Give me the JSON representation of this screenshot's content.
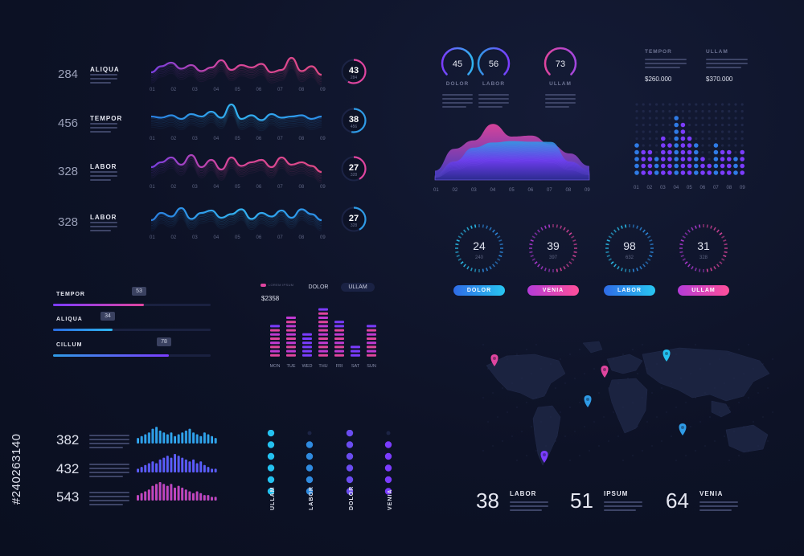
{
  "watermark": {
    "side_text": "#240263140"
  },
  "colors": {
    "background": "#0d1226",
    "pink": "#e0459f",
    "magenta": "#c03ad1",
    "purple": "#7b3cff",
    "blue": "#2f9be6",
    "cyan": "#24c1f0"
  },
  "wave_rows": [
    {
      "value": "284",
      "label": "ALIQUA",
      "badge": "43",
      "badge_sub": "284",
      "color": "pink",
      "ticks": [
        "01",
        "02",
        "03",
        "04",
        "05",
        "06",
        "07",
        "08",
        "09"
      ]
    },
    {
      "value": "456",
      "label": "TEMPOR",
      "badge": "38",
      "badge_sub": "456",
      "color": "blue",
      "ticks": [
        "01",
        "02",
        "03",
        "04",
        "05",
        "06",
        "07",
        "08",
        "09"
      ]
    },
    {
      "value": "328",
      "label": "LABOR",
      "badge": "27",
      "badge_sub": "328",
      "color": "pink",
      "ticks": [
        "01",
        "02",
        "03",
        "04",
        "05",
        "06",
        "07",
        "08",
        "09"
      ]
    },
    {
      "value": "328",
      "label": "LABOR",
      "badge": "27",
      "badge_sub": "328",
      "color": "blue",
      "ticks": [
        "01",
        "02",
        "03",
        "04",
        "05",
        "06",
        "07",
        "08",
        "09"
      ]
    }
  ],
  "progress_bars": [
    {
      "label": "TEMPOR",
      "value": "53",
      "fraction": 0.72
    },
    {
      "label": "ALIQUA",
      "value": "34",
      "fraction": 0.52
    },
    {
      "label": "CILLUM",
      "value": "78",
      "fraction": 0.88
    }
  ],
  "week_chart": {
    "legend": [
      "DOLOR",
      "ULLAM"
    ],
    "price": "$2358",
    "days": [
      "MON",
      "TUE",
      "WED",
      "THU",
      "FRI",
      "SAT",
      "SUN"
    ]
  },
  "small_rows": [
    {
      "value": "382"
    },
    {
      "value": "432"
    },
    {
      "value": "543"
    }
  ],
  "dot_columns": [
    "ULLAM",
    "LABOR",
    "DOLOR",
    "VENIA"
  ],
  "arc_gauges": [
    {
      "value": "45",
      "label": "DOLOR",
      "fraction": 0.62
    },
    {
      "value": "56",
      "label": "LABOR",
      "fraction": 0.7
    },
    {
      "value": "73",
      "label": "ULLAM",
      "fraction": 0.82
    }
  ],
  "prices": [
    {
      "label": "TEMPOR",
      "value": "$260.000"
    },
    {
      "label": "ULLAM",
      "value": "$370.000"
    }
  ],
  "area_chart_ticks": [
    "01",
    "02",
    "03",
    "04",
    "05",
    "06",
    "07",
    "08",
    "09"
  ],
  "dot_chart_ticks": [
    "01",
    "02",
    "03",
    "04",
    "05",
    "06",
    "07",
    "08",
    "09"
  ],
  "ring_gauges": [
    {
      "value": "24",
      "sub": "240",
      "label": "DOLOR",
      "color": "blue"
    },
    {
      "value": "39",
      "sub": "397",
      "label": "VENIA",
      "color": "pink"
    },
    {
      "value": "98",
      "sub": "632",
      "label": "LABOR",
      "color": "blue"
    },
    {
      "value": "31",
      "sub": "328",
      "label": "ULLAM",
      "color": "pink"
    }
  ],
  "map_stats": [
    {
      "value": "38",
      "label": "LABOR"
    },
    {
      "value": "51",
      "label": "IPSUM"
    },
    {
      "value": "64",
      "label": "VENIA"
    }
  ],
  "chart_data": [
    {
      "type": "bar",
      "categories": [
        "MON",
        "TUE",
        "WED",
        "THU",
        "FRI",
        "SAT",
        "SUN"
      ],
      "series": [
        {
          "name": "DOLOR",
          "values": [
            7,
            10,
            5,
            11,
            7,
            2,
            7
          ]
        },
        {
          "name": "ULLAM",
          "values": [
            8,
            10,
            6,
            12,
            9,
            3,
            8
          ]
        }
      ]
    },
    {
      "type": "area",
      "x": [
        "01",
        "02",
        "03",
        "04",
        "05",
        "06",
        "07",
        "08",
        "09"
      ],
      "series": [
        {
          "values": [
            2,
            6,
            9,
            11,
            10,
            9,
            8,
            5,
            3
          ]
        },
        {
          "values": [
            1,
            4,
            6,
            8,
            7,
            8,
            7,
            4,
            2
          ]
        }
      ]
    },
    {
      "type": "scatter",
      "x": [
        "01",
        "02",
        "03",
        "04",
        "05",
        "06",
        "07",
        "08",
        "09"
      ],
      "values": [
        4,
        3,
        5,
        8,
        5,
        2,
        4,
        3,
        3
      ]
    }
  ]
}
